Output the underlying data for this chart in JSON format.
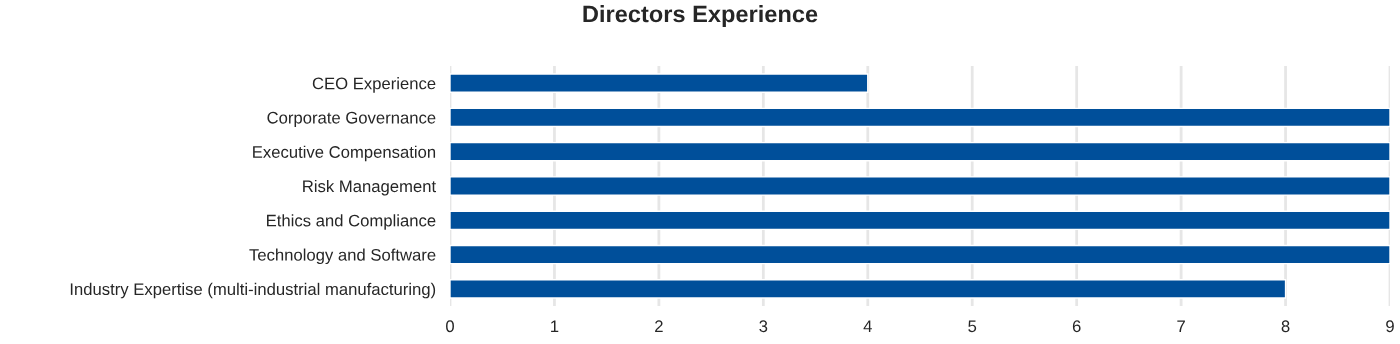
{
  "chart_data": {
    "type": "bar",
    "orientation": "horizontal",
    "title": "Directors Experience",
    "categories": [
      "CEO Experience",
      "Corporate Governance",
      "Executive Compensation",
      "Risk Management",
      "Ethics and Compliance",
      "Technology and Software",
      "Industry Expertise (multi-industrial manufacturing)"
    ],
    "values": [
      4,
      9,
      9,
      9,
      9,
      9,
      8
    ],
    "color": "#004f9a",
    "xlim": [
      0,
      9
    ],
    "xticks": [
      0,
      1,
      2,
      3,
      4,
      5,
      6,
      7,
      8,
      9
    ],
    "grid": "x",
    "legend": false
  }
}
